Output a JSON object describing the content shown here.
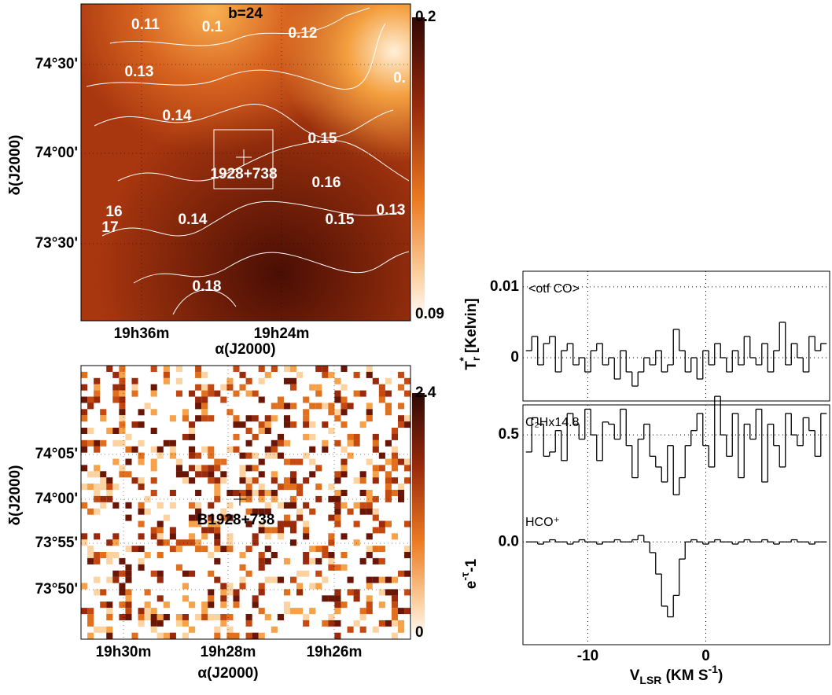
{
  "chart_data": [
    {
      "type": "map",
      "annotation": "b=24",
      "source": "1928+738",
      "xlabel": "α(J2000)",
      "ylabel": "δ(J2000)",
      "xtick_labels": [
        "19h36m",
        "19h24m"
      ],
      "ytick_labels": [
        "74°30'",
        "74°00'",
        "73°30'"
      ],
      "clim": [
        0.09,
        0.2
      ],
      "cticks": [
        0.09,
        0.2
      ],
      "contour_labels": [
        "0.11",
        "0.1",
        "0.12",
        "0.13",
        "0.14",
        "0.15",
        "0.16",
        "0.14",
        "0.15",
        "0.13",
        "16",
        "17",
        "0.18",
        "0."
      ]
    },
    {
      "type": "map",
      "source": "B1928+738",
      "xlabel": "α(J2000)",
      "ylabel": "δ(J2000)",
      "xtick_labels": [
        "19h30m",
        "19h28m",
        "19h26m"
      ],
      "ytick_labels": [
        "74°05'",
        "74°00'",
        "73°55'",
        "73°50'"
      ],
      "clim": [
        0,
        2.4
      ],
      "cticks": [
        0,
        2.4
      ]
    },
    {
      "type": "step",
      "ylabel": {
        "text": "T",
        "sub": "r",
        "sup": "*",
        "after": " [Kelvin]"
      },
      "xlim": [
        -15.5,
        10.5
      ],
      "ylim": [
        -0.0061,
        0.0122
      ],
      "yticks": [
        0,
        0.01
      ],
      "grid": true,
      "x": [
        -15,
        -14.5,
        -14,
        -13.5,
        -13,
        -12.5,
        -12,
        -11.5,
        -11,
        -10.5,
        -10,
        -9.5,
        -9,
        -8.5,
        -8,
        -7.5,
        -7,
        -6.5,
        -6,
        -5.5,
        -5,
        -4.5,
        -4,
        -3.5,
        -3,
        -2.5,
        -2,
        -1.5,
        -1,
        -0.5,
        0,
        0.5,
        1,
        1.5,
        2,
        2.5,
        3,
        3.5,
        4,
        4.5,
        5,
        5.5,
        6,
        6.5,
        7,
        7.5,
        8,
        8.5,
        9,
        9.5,
        10
      ],
      "series": [
        {
          "name": "<otf CO>",
          "color": "#000000",
          "values": [
            0.001,
            0.003,
            -0.001,
            0.002,
            0.003,
            -0.002,
            0.001,
            0.002,
            -0.001,
            0.0,
            -0.002,
            0.001,
            0.002,
            -0.001,
            0.0,
            -0.003,
            0.001,
            -0.002,
            -0.004,
            -0.002,
            0.0,
            -0.001,
            0.001,
            -0.002,
            -0.001,
            0.004,
            0.001,
            -0.002,
            0.0,
            -0.003,
            0.001,
            -0.001,
            0.002,
            0.0,
            -0.002,
            0.001,
            -0.001,
            0.003,
            0.0,
            -0.001,
            0.002,
            -0.002,
            0.001,
            0.005,
            -0.001,
            0.002,
            0.0,
            -0.002,
            0.003,
            0.001,
            0.002
          ]
        }
      ]
    },
    {
      "type": "step",
      "ylabel": {
        "text": "e",
        "sup": "-τ",
        "after": "-1"
      },
      "xlabel": {
        "text": "V",
        "sub": "LSR",
        "after": " (KM S",
        "sup": "-1",
        "end": ")"
      },
      "xlim": [
        -15.5,
        10.5
      ],
      "ylim": [
        -0.48,
        0.64
      ],
      "xticks": [
        -10,
        0
      ],
      "yticks": [
        {
          "value": 0,
          "label": "0.0"
        },
        0.5
      ],
      "grid": true,
      "x": [
        -15,
        -14.5,
        -14,
        -13.5,
        -13,
        -12.5,
        -12,
        -11.5,
        -11,
        -10.5,
        -10,
        -9.5,
        -9,
        -8.5,
        -8,
        -7.5,
        -7,
        -6.5,
        -6,
        -5.5,
        -5,
        -4.5,
        -4,
        -3.5,
        -3,
        -2.5,
        -2,
        -1.5,
        -1,
        -0.5,
        0,
        0.5,
        1,
        1.5,
        2,
        2.5,
        3,
        3.5,
        4,
        4.5,
        5,
        5.5,
        6,
        6.5,
        7,
        7.5,
        8,
        8.5,
        9,
        9.5,
        10
      ],
      "series": [
        {
          "name": "C₂Hx14.8",
          "color": "#000000",
          "values": [
            0.42,
            0.58,
            0.55,
            0.4,
            0.42,
            0.52,
            0.38,
            0.6,
            0.55,
            0.48,
            0.62,
            0.5,
            0.38,
            0.56,
            0.55,
            0.48,
            0.62,
            0.45,
            0.3,
            0.48,
            0.55,
            0.4,
            0.35,
            0.28,
            0.45,
            0.22,
            0.3,
            0.45,
            0.52,
            0.6,
            0.45,
            0.35,
            0.68,
            0.5,
            0.4,
            0.6,
            0.3,
            0.55,
            0.48,
            0.62,
            0.28,
            0.55,
            0.45,
            0.35,
            0.6,
            0.5,
            0.45,
            0.58,
            0.52,
            0.4,
            0.6
          ]
        },
        {
          "name": "HCO⁺",
          "color": "#000000",
          "values": [
            0.0,
            0.0,
            -0.01,
            0.0,
            0.01,
            0.0,
            0.0,
            -0.01,
            0.0,
            0.01,
            0.0,
            0.0,
            -0.01,
            0.0,
            0.0,
            0.01,
            0.0,
            0.0,
            0.01,
            0.03,
            0.0,
            -0.05,
            -0.15,
            -0.3,
            -0.35,
            -0.25,
            -0.08,
            0.0,
            0.01,
            0.0,
            -0.01,
            0.0,
            0.01,
            0.0,
            0.0,
            -0.01,
            0.0,
            0.01,
            0.0,
            0.0,
            0.01,
            0.0,
            -0.01,
            0.0,
            0.0,
            0.01,
            0.0,
            0.0,
            -0.01,
            0.0,
            0.0
          ]
        }
      ]
    }
  ]
}
